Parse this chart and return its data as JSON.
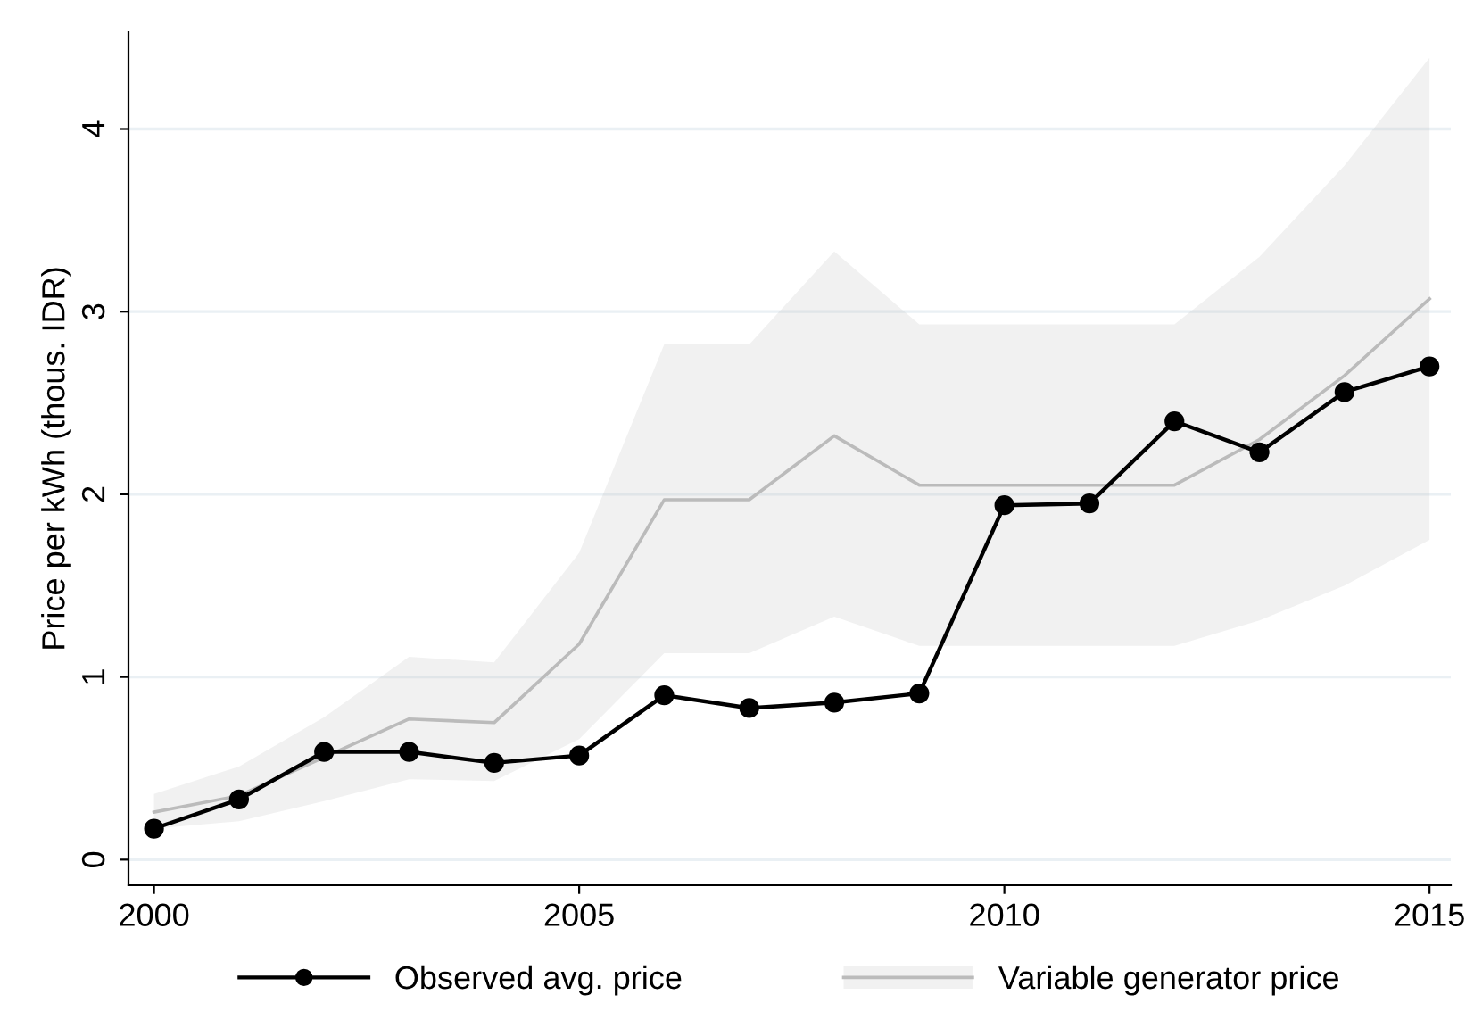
{
  "chart_data": {
    "type": "line",
    "ylabel": "Price per kWh (thous. IDR)",
    "x": [
      2000,
      2001,
      2002,
      2003,
      2004,
      2005,
      2006,
      2007,
      2008,
      2009,
      2010,
      2011,
      2012,
      2013,
      2014,
      2015
    ],
    "series": [
      {
        "name": "Variable generator price",
        "color": "#bbbbbb",
        "marker": "none",
        "values": [
          0.26,
          0.35,
          0.56,
          0.77,
          0.75,
          1.18,
          1.97,
          1.97,
          2.32,
          2.05,
          2.05,
          2.05,
          2.05,
          2.3,
          2.65,
          3.07
        ],
        "lower": [
          0.17,
          0.21,
          0.32,
          0.44,
          0.43,
          0.66,
          1.13,
          1.13,
          1.33,
          1.17,
          1.17,
          1.17,
          1.17,
          1.31,
          1.5,
          1.75
        ],
        "upper": [
          0.36,
          0.51,
          0.78,
          1.11,
          1.08,
          1.68,
          2.82,
          2.82,
          3.33,
          2.93,
          2.93,
          2.93,
          2.93,
          3.3,
          3.8,
          4.39
        ]
      },
      {
        "name": "Observed avg. price",
        "color": "#000000",
        "marker": "circle",
        "values": [
          0.17,
          0.33,
          0.59,
          0.59,
          0.53,
          0.57,
          0.9,
          0.83,
          0.86,
          0.91,
          1.94,
          1.95,
          2.4,
          2.23,
          2.56,
          2.7
        ]
      }
    ],
    "xlim": [
      1999.7,
      2015.25
    ],
    "xticks": [
      2000,
      2005,
      2010,
      2015
    ],
    "ylim": [
      -0.14,
      4.53
    ],
    "yticks": [
      0,
      1,
      2,
      3,
      4
    ],
    "grid": "y",
    "legend": "bottom",
    "line_style": "solid"
  }
}
